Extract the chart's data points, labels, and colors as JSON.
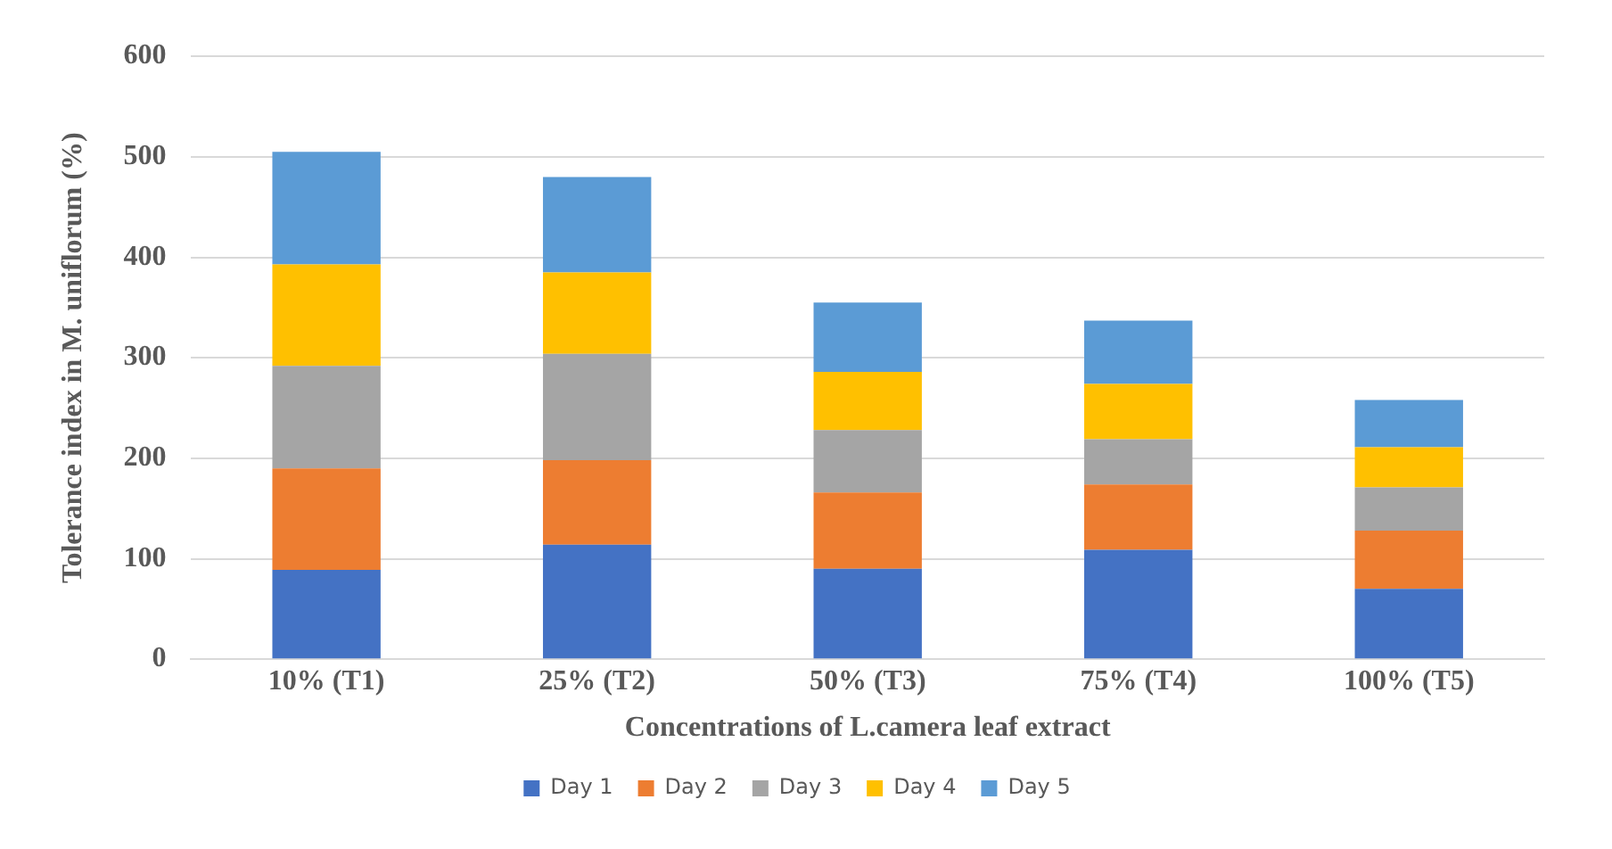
{
  "chart_data": {
    "type": "bar",
    "stacked": true,
    "xlabel": "Concentrations of L.camera leaf extract",
    "ylabel": "Tolerance index in M. uniflorum (%)",
    "categories": [
      "10% (T1)",
      "25% (T2)",
      "50% (T3)",
      "75% (T4)",
      "100% (T5)"
    ],
    "series": [
      {
        "name": "Day 1",
        "color": "#4472c4",
        "values": [
          89,
          114,
          90,
          109,
          70
        ]
      },
      {
        "name": "Day 2",
        "color": "#ed7d31",
        "values": [
          101,
          84,
          76,
          65,
          58
        ]
      },
      {
        "name": "Day 3",
        "color": "#a5a5a5",
        "values": [
          102,
          106,
          62,
          45,
          43
        ]
      },
      {
        "name": "Day 4",
        "color": "#ffc000",
        "values": [
          101,
          81,
          58,
          55,
          40
        ]
      },
      {
        "name": "Day 5",
        "color": "#5b9bd5",
        "values": [
          112,
          95,
          69,
          63,
          47
        ]
      }
    ],
    "ylim": [
      0,
      600
    ],
    "yticks": [
      0,
      100,
      200,
      300,
      400,
      500,
      600
    ],
    "grid": "y",
    "legend": "bottom"
  }
}
